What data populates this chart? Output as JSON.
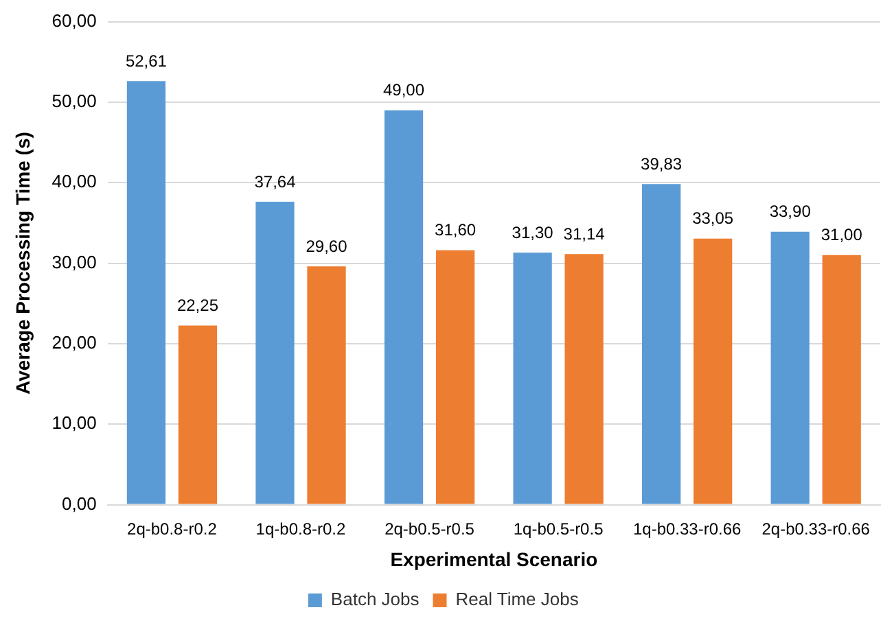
{
  "chart_data": {
    "type": "bar",
    "xlabel": "Experimental Scenario",
    "ylabel": "Average Processing Time (s)",
    "categories": [
      "2q-b0.8-r0.2",
      "1q-b0.8-r0.2",
      "2q-b0.5-r0.5",
      "1q-b0.5-r0.5",
      "1q-b0.33-r0.66",
      "2q-b0.33-r0.66"
    ],
    "series": [
      {
        "name": "Batch Jobs",
        "color": "#5b9bd5",
        "values": [
          52.61,
          37.64,
          49.0,
          31.3,
          39.83,
          33.9
        ],
        "value_labels": [
          "52,61",
          "37,64",
          "49,00",
          "31,30",
          "39,83",
          "33,90"
        ]
      },
      {
        "name": "Real Time Jobs",
        "color": "#ed7d31",
        "values": [
          22.25,
          29.6,
          31.6,
          31.14,
          33.05,
          31.0
        ],
        "value_labels": [
          "22,25",
          "29,60",
          "31,60",
          "31,14",
          "33,05",
          "31,00"
        ]
      }
    ],
    "ylim": [
      0,
      60
    ],
    "yticks": [
      {
        "value": 0,
        "label": "0,00"
      },
      {
        "value": 10,
        "label": "10,00"
      },
      {
        "value": 20,
        "label": "20,00"
      },
      {
        "value": 30,
        "label": "30,00"
      },
      {
        "value": 40,
        "label": "40,00"
      },
      {
        "value": 50,
        "label": "50,00"
      },
      {
        "value": 60,
        "label": "60,00"
      }
    ],
    "grid": "y",
    "legend": "bottom"
  }
}
